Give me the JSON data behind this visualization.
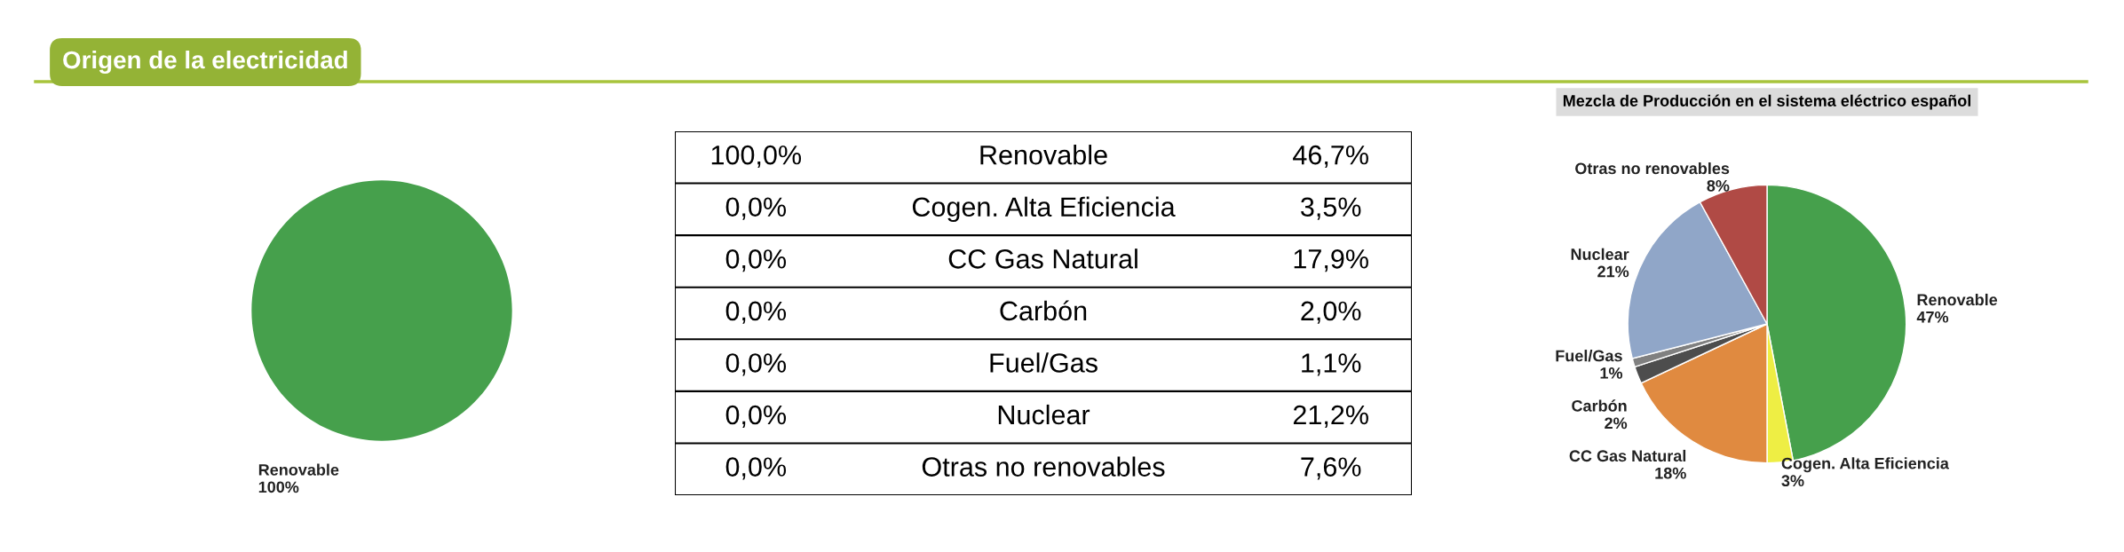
{
  "chart_data": [
    {
      "type": "pie",
      "title": "Origen de la electricidad",
      "categories": [
        "Renovable"
      ],
      "values": [
        100
      ],
      "colors": [
        "#46a04c"
      ],
      "value_labels": [
        "100%"
      ],
      "legend": false
    },
    {
      "type": "other",
      "categories": [
        "Renovable",
        "Cogen. Alta Eficiencia",
        "CC Gas Natural",
        "Carbón",
        "Fuel/Gas",
        "Nuclear",
        "Otras no renovables"
      ],
      "series": [
        {
          "values": [
            100.0,
            0.0,
            0.0,
            0.0,
            0.0,
            0.0,
            0.0
          ],
          "value_labels": [
            "100,0%",
            "0,0%",
            "0,0%",
            "0,0%",
            "0,0%",
            "0,0%",
            "0,0%"
          ]
        },
        {
          "values": [
            46.7,
            3.5,
            17.9,
            2.0,
            1.1,
            21.2,
            7.6
          ],
          "value_labels": [
            "46,7%",
            "3,5%",
            "17,9%",
            "2,0%",
            "1,1%",
            "21,2%",
            "7,6%"
          ]
        }
      ]
    },
    {
      "type": "pie",
      "title": "Mezcla de Producción en el sistema eléctrico español",
      "categories": [
        "Renovable",
        "Cogen. Alta Eficiencia",
        "CC Gas Natural",
        "Carbón",
        "Fuel/Gas",
        "Nuclear",
        "Otras no renovables"
      ],
      "values": [
        47,
        3,
        18,
        2,
        1,
        21,
        8
      ],
      "colors": [
        "#46a04c",
        "#eeee44",
        "#e08a40",
        "#4d4d4d",
        "#808080",
        "#90a6c8",
        "#b04a45"
      ],
      "value_labels": [
        "47%",
        "3%",
        "18%",
        "2%",
        "1%",
        "21%",
        "8%"
      ],
      "legend": false
    }
  ]
}
